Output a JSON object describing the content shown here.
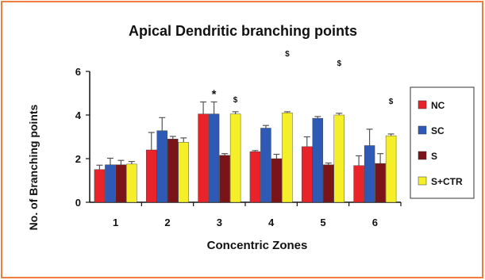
{
  "chart_data": {
    "type": "bar",
    "title": "Apical Dendritic branching points",
    "xlabel": "Concentric Zones",
    "ylabel": "No. of Branching points",
    "categories": [
      "1",
      "2",
      "3",
      "4",
      "5",
      "6"
    ],
    "yticks": [
      "0",
      "2",
      "4",
      "6"
    ],
    "ylim": [
      0,
      6
    ],
    "grid": false,
    "legend_position": "right",
    "series": [
      {
        "name": "NC",
        "color": "#e8232a",
        "values": [
          1.5,
          2.4,
          4.05,
          2.32,
          2.55,
          1.68
        ],
        "errors": [
          0.2,
          0.8,
          0.55,
          0.05,
          0.45,
          0.45
        ]
      },
      {
        "name": "SC",
        "color": "#2e5ab5",
        "values": [
          1.72,
          3.28,
          4.05,
          3.4,
          3.85,
          2.6
        ],
        "errors": [
          0.3,
          0.6,
          0.55,
          0.12,
          0.08,
          0.75
        ]
      },
      {
        "name": "S",
        "color": "#7b1418",
        "values": [
          1.72,
          2.9,
          2.15,
          2.0,
          1.72,
          1.78
        ],
        "errors": [
          0.2,
          0.12,
          0.08,
          0.2,
          0.08,
          0.45
        ]
      },
      {
        "name": "S+CTR",
        "color": "#f5ef2a",
        "values": [
          1.75,
          2.75,
          4.05,
          4.1,
          4.0,
          3.05
        ],
        "errors": [
          0.12,
          0.2,
          0.1,
          0.05,
          0.08,
          0.08
        ]
      }
    ],
    "annotations": [
      {
        "text": "*",
        "category": "3",
        "series": "SC"
      },
      {
        "text": "$",
        "category": "3",
        "series": "S+CTR"
      },
      {
        "text": "$",
        "category": "4",
        "series": "S+CTR"
      },
      {
        "text": "$",
        "category": "5",
        "series": "S+CTR"
      },
      {
        "text": "$",
        "category": "6",
        "series": "S+CTR"
      }
    ],
    "colors": {
      "frame": "#ef7d3c",
      "axis": "#111111",
      "error_bar": "#555555"
    }
  }
}
